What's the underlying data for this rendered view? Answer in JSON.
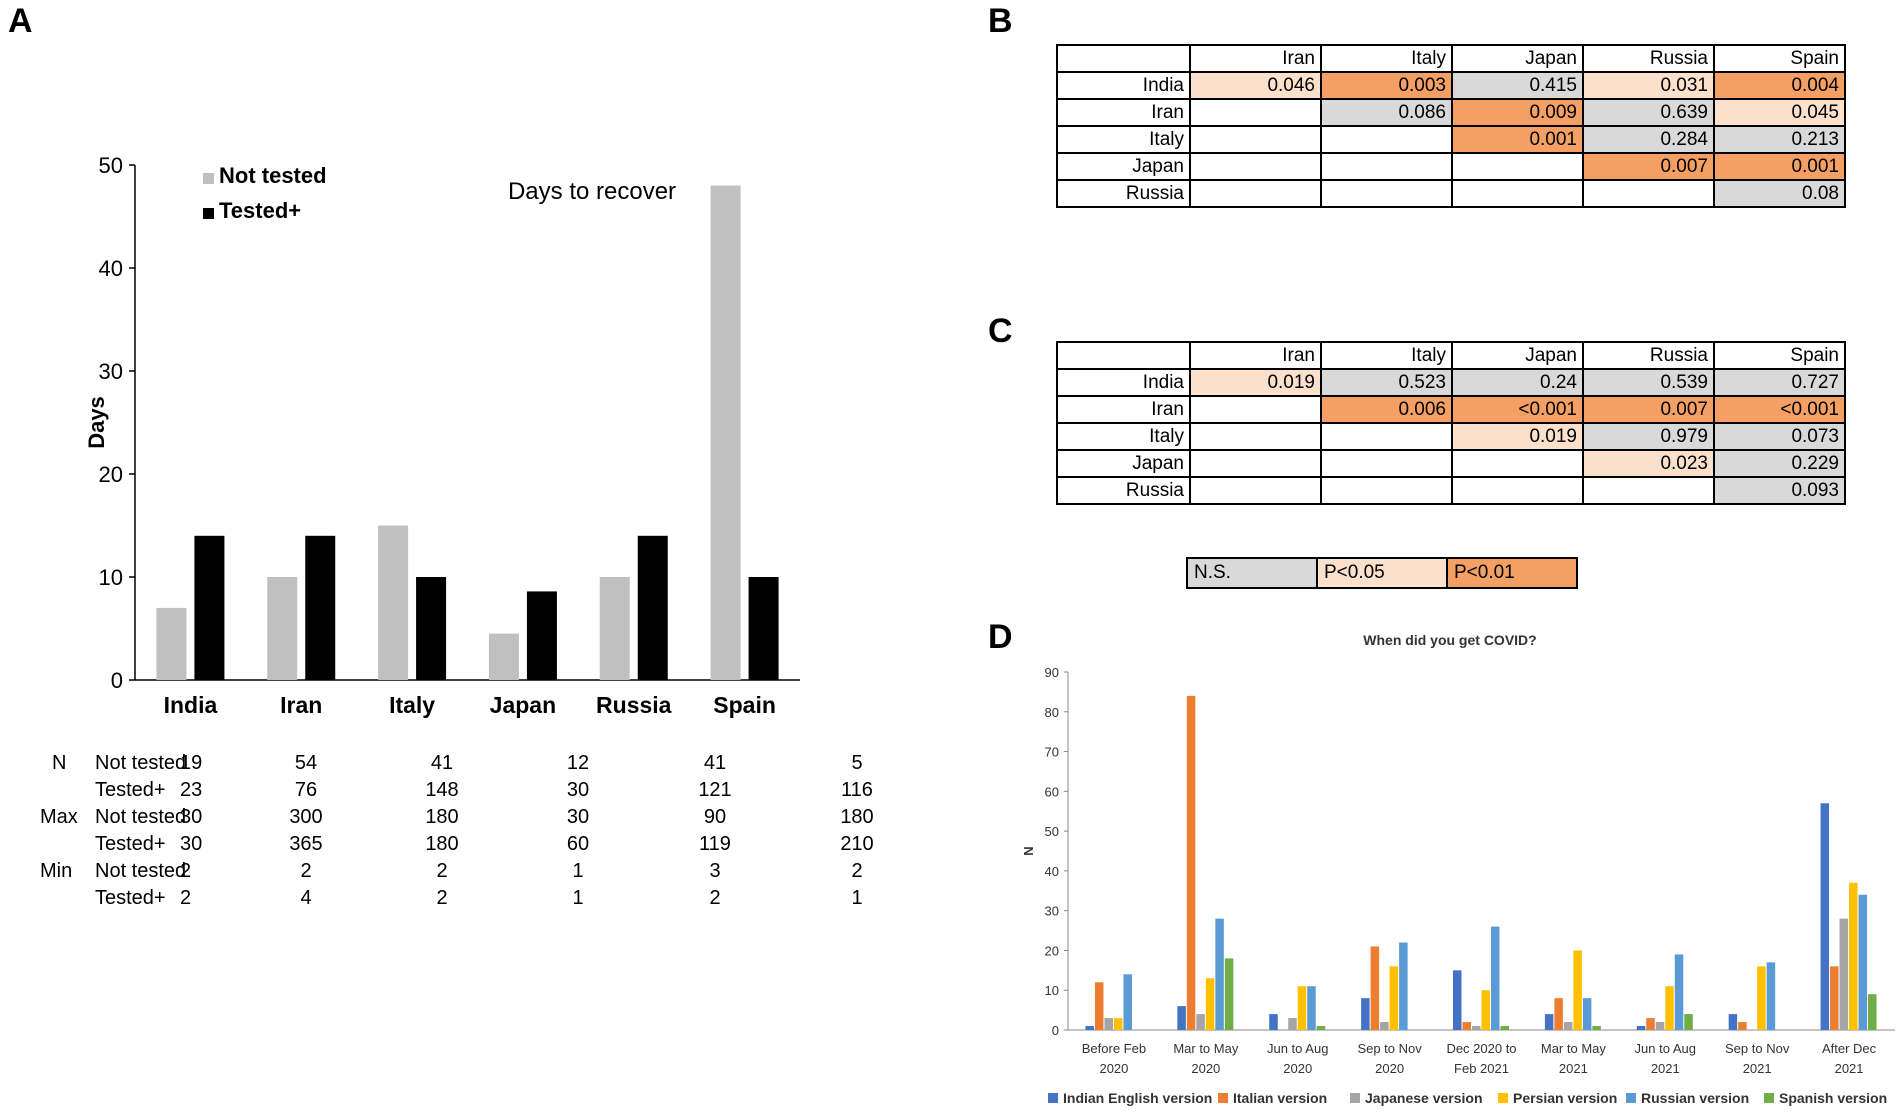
{
  "panels": {
    "a": "A",
    "b": "B",
    "c": "C",
    "d": "D"
  },
  "panelA": {
    "chart_data": {
      "type": "bar",
      "title": "Days to recover",
      "ylabel": "Days",
      "xlabel": "",
      "ylim": [
        0,
        50
      ],
      "yticks": [
        0,
        10,
        20,
        30,
        40,
        50
      ],
      "categories": [
        "India",
        "Iran",
        "Italy",
        "Japan",
        "Russia",
        "Spain"
      ],
      "series": [
        {
          "name": "Not tested",
          "color": "#c0c0c0",
          "values": [
            7,
            10,
            15,
            4.5,
            10,
            48
          ]
        },
        {
          "name": "Tested+",
          "color": "#000000",
          "values": [
            14,
            14,
            10,
            8.6,
            14,
            10
          ]
        }
      ],
      "legend_position": "top-left"
    },
    "stats": {
      "groups": [
        {
          "group": "N",
          "rows": [
            {
              "label": "Not tested",
              "values": [
                "19",
                "54",
                "41",
                "12",
                "41",
                "5"
              ]
            },
            {
              "label": "Tested+",
              "values": [
                "23",
                "76",
                "148",
                "30",
                "121",
                "116"
              ]
            }
          ]
        },
        {
          "group": "Max",
          "rows": [
            {
              "label": "Not tested",
              "values": [
                "30",
                "300",
                "180",
                "30",
                "90",
                "180"
              ]
            },
            {
              "label": "Tested+",
              "values": [
                "30",
                "365",
                "180",
                "60",
                "119",
                "210"
              ]
            }
          ]
        },
        {
          "group": "Min",
          "rows": [
            {
              "label": "Not tested",
              "values": [
                "2",
                "2",
                "2",
                "1",
                "3",
                "2"
              ]
            },
            {
              "label": "Tested+",
              "values": [
                "2",
                "4",
                "2",
                "1",
                "2",
                "1"
              ]
            }
          ]
        }
      ]
    }
  },
  "panelB": {
    "headers": [
      "Iran",
      "Italy",
      "Japan",
      "Russia",
      "Spain"
    ],
    "rows": [
      {
        "label": "India",
        "cells": [
          {
            "v": "0.046",
            "s": "w"
          },
          {
            "v": "0.003",
            "s": "h"
          },
          {
            "v": "0.415",
            "s": "s"
          },
          {
            "v": "0.031",
            "s": "w"
          },
          {
            "v": "0.004",
            "s": "h"
          }
        ]
      },
      {
        "label": "Iran",
        "cells": [
          {
            "v": "",
            "s": ""
          },
          {
            "v": "0.086",
            "s": "s"
          },
          {
            "v": "0.009",
            "s": "h"
          },
          {
            "v": "0.639",
            "s": "s"
          },
          {
            "v": "0.045",
            "s": "w"
          }
        ]
      },
      {
        "label": "Italy",
        "cells": [
          {
            "v": "",
            "s": ""
          },
          {
            "v": "",
            "s": ""
          },
          {
            "v": "0.001",
            "s": "h"
          },
          {
            "v": "0.284",
            "s": "s"
          },
          {
            "v": "0.213",
            "s": "s"
          }
        ]
      },
      {
        "label": "Japan",
        "cells": [
          {
            "v": "",
            "s": ""
          },
          {
            "v": "",
            "s": ""
          },
          {
            "v": "",
            "s": ""
          },
          {
            "v": "0.007",
            "s": "h"
          },
          {
            "v": "0.001",
            "s": "h"
          }
        ]
      },
      {
        "label": "Russia",
        "cells": [
          {
            "v": "",
            "s": ""
          },
          {
            "v": "",
            "s": ""
          },
          {
            "v": "",
            "s": ""
          },
          {
            "v": "",
            "s": ""
          },
          {
            "v": "0.08",
            "s": "s"
          }
        ]
      }
    ]
  },
  "panelC": {
    "headers": [
      "Iran",
      "Italy",
      "Japan",
      "Russia",
      "Spain"
    ],
    "rows": [
      {
        "label": "India",
        "cells": [
          {
            "v": "0.019",
            "s": "w"
          },
          {
            "v": "0.523",
            "s": "s"
          },
          {
            "v": "0.24",
            "s": "s"
          },
          {
            "v": "0.539",
            "s": "s"
          },
          {
            "v": "0.727",
            "s": "s"
          }
        ]
      },
      {
        "label": "Iran",
        "cells": [
          {
            "v": "",
            "s": ""
          },
          {
            "v": "0.006",
            "s": "h"
          },
          {
            "v": "<0.001",
            "s": "h"
          },
          {
            "v": "0.007",
            "s": "h"
          },
          {
            "v": "<0.001",
            "s": "h"
          }
        ]
      },
      {
        "label": "Italy",
        "cells": [
          {
            "v": "",
            "s": ""
          },
          {
            "v": "",
            "s": ""
          },
          {
            "v": "0.019",
            "s": "w"
          },
          {
            "v": "0.979",
            "s": "s"
          },
          {
            "v": "0.073",
            "s": "s"
          }
        ]
      },
      {
        "label": "Japan",
        "cells": [
          {
            "v": "",
            "s": ""
          },
          {
            "v": "",
            "s": ""
          },
          {
            "v": "",
            "s": ""
          },
          {
            "v": "0.023",
            "s": "w"
          },
          {
            "v": "0.229",
            "s": "s"
          }
        ]
      },
      {
        "label": "Russia",
        "cells": [
          {
            "v": "",
            "s": ""
          },
          {
            "v": "",
            "s": ""
          },
          {
            "v": "",
            "s": ""
          },
          {
            "v": "",
            "s": ""
          },
          {
            "v": "0.093",
            "s": "s"
          }
        ]
      }
    ]
  },
  "significance_legend": {
    "ns": "N.S.",
    "p05": "P<0.05",
    "p01": "P<0.01"
  },
  "panelD": {
    "chart_data": {
      "type": "bar",
      "title": "When did you get COVID?",
      "ylabel": "N",
      "xlabel": "",
      "ylim": [
        0,
        90
      ],
      "yticks": [
        0,
        10,
        20,
        30,
        40,
        50,
        60,
        70,
        80,
        90
      ],
      "categories": [
        [
          "Before Feb",
          "2020"
        ],
        [
          "Mar to May",
          "2020"
        ],
        [
          "Jun to Aug",
          "2020"
        ],
        [
          "Sep to Nov",
          "2020"
        ],
        [
          "Dec 2020 to",
          "Feb  2021"
        ],
        [
          "Mar to May",
          "2021"
        ],
        [
          "Jun to Aug",
          "2021"
        ],
        [
          "Sep to Nov",
          "2021"
        ],
        [
          "After Dec",
          "2021"
        ]
      ],
      "series": [
        {
          "name": "Indian English version",
          "color": "#4472c4",
          "values": [
            1,
            6,
            4,
            8,
            15,
            4,
            1,
            4,
            57
          ]
        },
        {
          "name": "Italian version",
          "color": "#ed7d31",
          "values": [
            12,
            84,
            0,
            21,
            2,
            8,
            3,
            2,
            16
          ]
        },
        {
          "name": "Japanese version",
          "color": "#a5a5a5",
          "values": [
            3,
            4,
            3,
            2,
            1,
            2,
            2,
            0,
            28
          ]
        },
        {
          "name": "Persian version",
          "color": "#ffc000",
          "values": [
            3,
            13,
            11,
            16,
            10,
            20,
            11,
            16,
            37
          ]
        },
        {
          "name": "Russian version",
          "color": "#5b9bd5",
          "values": [
            14,
            28,
            11,
            22,
            26,
            8,
            19,
            17,
            34
          ]
        },
        {
          "name": "Spanish version",
          "color": "#70ad47",
          "values": [
            0,
            18,
            1,
            0,
            1,
            1,
            4,
            0,
            9
          ]
        }
      ],
      "legend_position": "bottom"
    }
  }
}
